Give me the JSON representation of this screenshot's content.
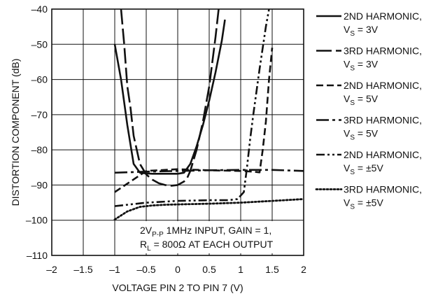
{
  "chart_data": {
    "type": "line",
    "xlabel": "VOLTAGE PIN 2 TO PIN 7 (V)",
    "ylabel": "DISTORTION COMPONENT (dB)",
    "xlim": [
      -2,
      2
    ],
    "ylim": [
      -110,
      -40
    ],
    "x_ticks": [
      -2,
      -1.5,
      -1,
      -0.5,
      0,
      0.5,
      1,
      1.5,
      2
    ],
    "x_tick_labels": [
      "–2",
      "–1.5",
      "–1",
      "–0.5",
      "0",
      "0.5",
      "1",
      "1.5",
      "2"
    ],
    "y_ticks": [
      -40,
      -50,
      -60,
      -70,
      -80,
      -90,
      -100,
      -110
    ],
    "y_tick_labels": [
      "–40",
      "–50",
      "–60",
      "–70",
      "–80",
      "–90",
      "–100",
      "–110"
    ],
    "grid": true,
    "legend_position": "right",
    "annotation": {
      "line1": "2VP-P 1MHz INPUT, GAIN = 1,",
      "line2": "RL = 800Ω AT EACH OUTPUT"
    },
    "series": [
      {
        "name": "2ND HARMONIC, VS = 3V",
        "name_line1": "2ND HARMONIC,",
        "name_line2": "VS = 3V",
        "style": "solid",
        "x": [
          -1.0,
          -0.9,
          -0.8,
          -0.7,
          -0.6,
          -0.5,
          -0.4,
          -0.2,
          0.0,
          0.1,
          0.2,
          0.3,
          0.4,
          0.5,
          0.6,
          0.7,
          0.75
        ],
        "y": [
          -50,
          -60,
          -73,
          -84,
          -86.5,
          -86.7,
          -86.8,
          -86.8,
          -86.8,
          -86.5,
          -84,
          -79,
          -73,
          -66,
          -58,
          -49,
          -43
        ]
      },
      {
        "name": "3RD HARMONIC, VS = 3V",
        "name_line1": "3RD HARMONIC,",
        "name_line2": "VS = 3V",
        "style": "longdash",
        "x": [
          -0.9,
          -0.85,
          -0.8,
          -0.75,
          -0.7,
          -0.6,
          -0.5,
          -0.4,
          -0.3,
          -0.2,
          -0.1,
          0.0,
          0.1,
          0.15,
          0.2,
          0.3,
          0.4,
          0.5,
          0.6,
          0.65
        ],
        "y": [
          -40,
          -50,
          -62,
          -68,
          -76,
          -84,
          -87,
          -88.5,
          -89.5,
          -90,
          -90.2,
          -90,
          -89,
          -88,
          -86,
          -80,
          -72,
          -62,
          -48,
          -40
        ]
      },
      {
        "name": "2ND HARMONIC, VS = 5V",
        "name_line1": "2ND HARMONIC,",
        "name_line2": "VS = 5V",
        "style": "dash",
        "x": [
          -1.0,
          -0.5,
          0.0,
          0.5,
          1.0,
          1.2,
          1.3,
          1.35,
          1.4,
          1.45,
          1.5
        ],
        "y": [
          -92,
          -86,
          -85.5,
          -85.8,
          -86,
          -86.2,
          -86.4,
          -80,
          -72,
          -60,
          -51
        ]
      },
      {
        "name": "3RD HARMONIC, VS = 5V",
        "name_line1": "3RD HARMONIC,",
        "name_line2": "VS = 5V",
        "style": "dashdot",
        "x": [
          -1.0,
          -0.5,
          0.0,
          0.5,
          1.0,
          1.5,
          2.0
        ],
        "y": [
          -86.5,
          -86.2,
          -86,
          -85.8,
          -85.7,
          -85.7,
          -86
        ]
      },
      {
        "name": "2ND HARMONIC, VS = ±5V",
        "name_line1": "2ND HARMONIC,",
        "name_line2": "VS = ±5V",
        "style": "dashdotdot",
        "x": [
          -1.0,
          -0.5,
          0.0,
          0.5,
          0.8,
          0.95,
          1.05,
          1.1,
          1.15,
          1.2,
          1.3,
          1.4,
          1.45
        ],
        "y": [
          -96,
          -95,
          -94.5,
          -94.3,
          -94.3,
          -94,
          -92,
          -85,
          -77,
          -70,
          -57,
          -45,
          -40
        ]
      },
      {
        "name": "3RD HARMONIC, VS = ±5V",
        "name_line1": "3RD HARMONIC,",
        "name_line2": "VS = ±5V",
        "style": "dotted",
        "x": [
          -1.0,
          -0.8,
          -0.6,
          -0.4,
          -0.2,
          0.0,
          0.5,
          1.0,
          1.5,
          2.0
        ],
        "y": [
          -99.8,
          -97.5,
          -96.2,
          -95.8,
          -95.6,
          -95.5,
          -95.3,
          -95,
          -94.5,
          -94
        ]
      }
    ]
  }
}
